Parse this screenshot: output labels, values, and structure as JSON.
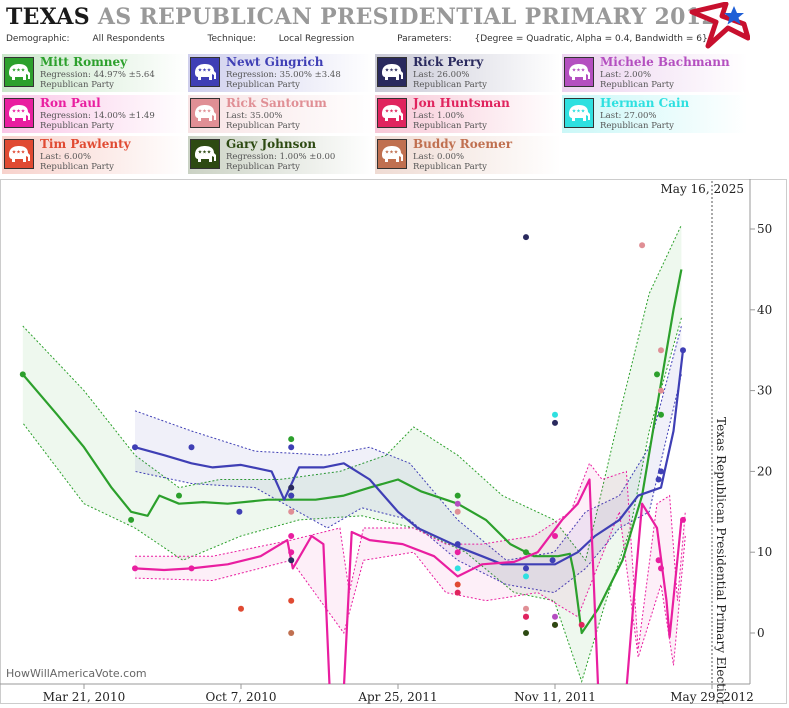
{
  "header": {
    "title_state": "TEXAS",
    "title_rest": "AS REPUBLICAN PRESIDENTIAL PRIMARY 2012",
    "demographic_label": "Demographic:",
    "demographic": "All Respondents",
    "technique_label": "Technique:",
    "technique": "Local Regression",
    "parameters_label": "Parameters:",
    "parameters": "{Degree = Quadratic, Alpha = 0.4, Bandwidth = 6}"
  },
  "logo_icon": "flag-star-logo-icon",
  "candidates": [
    {
      "name": "Mitt Romney",
      "stat": "Regression: 44.97% ±5.64",
      "party": "Republican Party",
      "color": "#2ca02c"
    },
    {
      "name": "Newt Gingrich",
      "stat": "Regression: 35.00% ±3.48",
      "party": "Republican Party",
      "color": "#3f3fb5"
    },
    {
      "name": "Rick Perry",
      "stat": "Last: 26.00%",
      "party": "Republican Party",
      "color": "#2a2a5e"
    },
    {
      "name": "Michele Bachmann",
      "stat": "Last: 2.00%",
      "party": "Republican Party",
      "color": "#b44fc0"
    },
    {
      "name": "Ron Paul",
      "stat": "Regression: 14.00% ±1.49",
      "party": "Republican Party",
      "color": "#e91ea0"
    },
    {
      "name": "Rick Santorum",
      "stat": "Last: 35.00%",
      "party": "Republican Party",
      "color": "#e08f95"
    },
    {
      "name": "Jon Huntsman",
      "stat": "Last: 1.00%",
      "party": "Republican Party",
      "color": "#e0245e"
    },
    {
      "name": "Herman Cain",
      "stat": "Last: 27.00%",
      "party": "Republican Party",
      "color": "#2ee0e0"
    },
    {
      "name": "Tim Pawlenty",
      "stat": "Last: 6.00%",
      "party": "Republican Party",
      "color": "#e04a32"
    },
    {
      "name": "Gary Johnson",
      "stat": "Regression: 1.00% ±0.00",
      "party": "Republican Party",
      "color": "#2d4a12"
    },
    {
      "name": "Buddy Roemer",
      "stat": "Last: 0.00%",
      "party": "Republican Party",
      "color": "#c07050"
    }
  ],
  "chart_data": {
    "type": "line",
    "x_type": "date",
    "xlim": [
      "2009-12-27",
      "2012-06-02"
    ],
    "ylim": [
      -7,
      55
    ],
    "yticks": [
      0,
      10,
      20,
      30,
      40,
      50
    ],
    "xticks": [
      {
        "date": "2010-03-21",
        "label": "Mar 21, 2010"
      },
      {
        "date": "2010-10-07",
        "label": "Oct 7, 2010"
      },
      {
        "date": "2011-04-25",
        "label": "Apr 25, 2011"
      },
      {
        "date": "2011-11-11",
        "label": "Nov 11, 2011"
      },
      {
        "date": "2012-05-29",
        "label": "May 29, 2012"
      }
    ],
    "current_date_label": "May 16, 2025",
    "election_label": "Texas Republican Presidential Primary Election",
    "election_date": "2012-05-29",
    "watermark": "HowWillAmericaVote.com",
    "bands": [
      {
        "color": "#2ca02c",
        "fill": "rgba(44,160,44,0.08)",
        "upper": [
          [
            "2010-01-02",
            38
          ],
          [
            "2010-03-21",
            30
          ],
          [
            "2010-05-25",
            22
          ],
          [
            "2010-07-20",
            18
          ],
          [
            "2010-09-10",
            19
          ],
          [
            "2010-11-25",
            19
          ],
          [
            "2011-02-10",
            20
          ],
          [
            "2011-04-10",
            22
          ],
          [
            "2011-05-15",
            25.5
          ],
          [
            "2011-07-10",
            22
          ],
          [
            "2011-09-05",
            17
          ],
          [
            "2011-11-10",
            14
          ],
          [
            "2011-12-20",
            9
          ],
          [
            "2012-02-01",
            27
          ],
          [
            "2012-03-10",
            42
          ],
          [
            "2012-04-20",
            50.5
          ]
        ],
        "lower": [
          [
            "2012-04-20",
            39
          ],
          [
            "2012-03-10",
            25
          ],
          [
            "2012-02-15",
            13
          ],
          [
            "2012-01-15",
            4
          ],
          [
            "2011-12-15",
            -6
          ],
          [
            "2011-11-10",
            4
          ],
          [
            "2011-09-20",
            5
          ],
          [
            "2011-07-20",
            10
          ],
          [
            "2011-05-15",
            13
          ],
          [
            "2011-03-10",
            14.5
          ],
          [
            "2010-12-20",
            14
          ],
          [
            "2010-10-07",
            12
          ],
          [
            "2010-07-25",
            9
          ],
          [
            "2010-05-25",
            13
          ],
          [
            "2010-03-21",
            16
          ],
          [
            "2010-01-02",
            26
          ]
        ]
      },
      {
        "color": "#3f3fb5",
        "fill": "rgba(63,63,181,0.08)",
        "upper": [
          [
            "2010-05-25",
            27.5
          ],
          [
            "2010-08-05",
            25
          ],
          [
            "2010-10-25",
            22.5
          ],
          [
            "2011-01-25",
            22
          ],
          [
            "2011-03-20",
            23
          ],
          [
            "2011-05-10",
            21
          ],
          [
            "2011-07-10",
            14
          ],
          [
            "2011-09-10",
            9
          ],
          [
            "2011-11-10",
            10
          ],
          [
            "2011-12-20",
            15
          ],
          [
            "2012-02-01",
            17
          ],
          [
            "2012-03-10",
            23
          ],
          [
            "2012-04-20",
            38
          ]
        ],
        "lower": [
          [
            "2012-04-20",
            32
          ],
          [
            "2012-03-10",
            15
          ],
          [
            "2012-02-01",
            13
          ],
          [
            "2011-12-20",
            8
          ],
          [
            "2011-11-10",
            5
          ],
          [
            "2011-09-10",
            6
          ],
          [
            "2011-07-10",
            9
          ],
          [
            "2011-05-10",
            14
          ],
          [
            "2011-03-10",
            15.5
          ],
          [
            "2011-01-25",
            13
          ],
          [
            "2010-10-25",
            18
          ],
          [
            "2010-08-05",
            18.5
          ],
          [
            "2010-05-25",
            20
          ]
        ]
      },
      {
        "color": "#e91ea0",
        "fill": "rgba(233,30,160,0.07)",
        "upper": [
          [
            "2010-05-25",
            9.5
          ],
          [
            "2010-09-01",
            9.5
          ],
          [
            "2010-12-10",
            11.5
          ],
          [
            "2011-02-10",
            13
          ],
          [
            "2011-02-22",
            5
          ],
          [
            "2011-03-12",
            13
          ],
          [
            "2011-05-15",
            13
          ],
          [
            "2011-06-25",
            11
          ],
          [
            "2011-08-10",
            11
          ],
          [
            "2011-10-15",
            12
          ],
          [
            "2011-12-01",
            15
          ],
          [
            "2011-12-25",
            21
          ],
          [
            "2012-01-10",
            19
          ],
          [
            "2012-02-10",
            20
          ],
          [
            "2012-02-25",
            -2
          ],
          [
            "2012-03-20",
            16
          ],
          [
            "2012-04-05",
            17
          ],
          [
            "2012-04-15",
            4
          ],
          [
            "2012-04-25",
            15
          ]
        ],
        "lower": [
          [
            "2012-04-25",
            12
          ],
          [
            "2012-04-10",
            -4
          ],
          [
            "2012-03-25",
            6
          ],
          [
            "2012-02-25",
            -3
          ],
          [
            "2012-02-01",
            15
          ],
          [
            "2011-12-10",
            2
          ],
          [
            "2011-10-20",
            5
          ],
          [
            "2011-08-15",
            4
          ],
          [
            "2011-06-25",
            5
          ],
          [
            "2011-05-15",
            10
          ],
          [
            "2011-03-12",
            9
          ],
          [
            "2011-02-15",
            0
          ],
          [
            "2010-12-10",
            9
          ],
          [
            "2010-09-01",
            6.5
          ],
          [
            "2010-05-25",
            6.8
          ]
        ]
      }
    ],
    "series": [
      {
        "name": "Mitt Romney",
        "color": "#2ca02c",
        "line": [
          [
            "2010-01-02",
            32
          ],
          [
            "2010-02-15",
            27
          ],
          [
            "2010-03-21",
            23
          ],
          [
            "2010-04-25",
            18
          ],
          [
            "2010-05-20",
            15
          ],
          [
            "2010-06-10",
            14.5
          ],
          [
            "2010-06-25",
            17
          ],
          [
            "2010-07-20",
            16
          ],
          [
            "2010-08-20",
            16.2
          ],
          [
            "2010-09-20",
            16
          ],
          [
            "2010-11-10",
            16.5
          ],
          [
            "2011-01-10",
            16.5
          ],
          [
            "2011-02-15",
            17
          ],
          [
            "2011-03-20",
            18
          ],
          [
            "2011-04-25",
            19
          ],
          [
            "2011-05-25",
            17.5
          ],
          [
            "2011-07-10",
            16
          ],
          [
            "2011-08-15",
            14
          ],
          [
            "2011-09-15",
            11
          ],
          [
            "2011-10-15",
            9.5
          ],
          [
            "2011-11-15",
            9.5
          ],
          [
            "2011-11-30",
            9.8
          ],
          [
            "2011-12-05",
            7.5
          ],
          [
            "2011-12-15",
            0
          ],
          [
            "2012-01-05",
            3
          ],
          [
            "2012-02-05",
            9
          ],
          [
            "2012-03-01",
            17
          ],
          [
            "2012-03-20",
            28
          ],
          [
            "2012-04-10",
            40
          ],
          [
            "2012-04-20",
            45
          ]
        ],
        "dash_upper": [],
        "points": [
          [
            "2010-01-02",
            32
          ],
          [
            "2010-05-20",
            14
          ],
          [
            "2010-07-20",
            17
          ],
          [
            "2010-12-10",
            24
          ],
          [
            "2010-12-10",
            17
          ],
          [
            "2011-07-10",
            17
          ],
          [
            "2011-10-05",
            10
          ],
          [
            "2012-03-20",
            32
          ],
          [
            "2012-03-25",
            27
          ]
        ]
      },
      {
        "name": "Newt Gingrich",
        "color": "#3f3fb5",
        "line": [
          [
            "2010-05-25",
            23
          ],
          [
            "2010-07-01",
            22
          ],
          [
            "2010-08-05",
            21
          ],
          [
            "2010-09-01",
            20.5
          ],
          [
            "2010-10-07",
            20.8
          ],
          [
            "2010-11-15",
            20
          ],
          [
            "2010-12-01",
            16.5
          ],
          [
            "2010-12-20",
            20.5
          ],
          [
            "2011-01-20",
            20.5
          ],
          [
            "2011-02-15",
            21
          ],
          [
            "2011-03-20",
            19
          ],
          [
            "2011-04-25",
            15
          ],
          [
            "2011-05-20",
            13
          ],
          [
            "2011-07-15",
            10.5
          ],
          [
            "2011-08-10",
            9.5
          ],
          [
            "2011-09-05",
            8.5
          ],
          [
            "2011-10-20",
            8.5
          ],
          [
            "2011-11-11",
            8.5
          ],
          [
            "2011-12-10",
            10
          ],
          [
            "2012-01-01",
            12
          ],
          [
            "2012-02-01",
            14
          ],
          [
            "2012-02-25",
            17
          ],
          [
            "2012-03-25",
            18
          ],
          [
            "2012-04-10",
            25
          ],
          [
            "2012-04-22",
            35
          ]
        ],
        "points": [
          [
            "2010-05-25",
            23
          ],
          [
            "2010-08-05",
            23
          ],
          [
            "2010-10-05",
            15
          ],
          [
            "2010-12-10",
            23
          ],
          [
            "2010-12-10",
            17
          ],
          [
            "2011-07-10",
            11
          ],
          [
            "2011-10-05",
            8
          ],
          [
            "2011-11-08",
            9
          ],
          [
            "2012-03-25",
            20
          ],
          [
            "2012-03-22",
            19
          ],
          [
            "2012-04-22",
            35
          ]
        ]
      },
      {
        "name": "Ron Paul",
        "color": "#e91ea0",
        "line": [
          [
            "2010-05-25",
            8
          ],
          [
            "2010-07-01",
            7.8
          ],
          [
            "2010-08-05",
            8
          ],
          [
            "2010-09-20",
            8.5
          ],
          [
            "2010-11-01",
            9.5
          ],
          [
            "2010-12-05",
            11.5
          ],
          [
            "2010-12-12",
            8
          ],
          [
            "2011-01-05",
            12
          ],
          [
            "2011-01-20",
            11
          ],
          [
            "2011-01-28",
            -7
          ],
          [
            "2011-02-15",
            -7
          ],
          [
            "2011-02-25",
            12.5
          ],
          [
            "2011-03-20",
            11.5
          ],
          [
            "2011-05-01",
            11
          ],
          [
            "2011-06-10",
            9.5
          ],
          [
            "2011-07-10",
            7
          ],
          [
            "2011-08-10",
            8.5
          ],
          [
            "2011-09-20",
            8.8
          ],
          [
            "2011-10-20",
            10
          ],
          [
            "2011-11-20",
            14
          ],
          [
            "2011-12-10",
            16
          ],
          [
            "2011-12-25",
            19
          ],
          [
            "2012-01-05",
            -7
          ],
          [
            "2012-02-10",
            -7
          ],
          [
            "2012-02-20",
            5
          ],
          [
            "2012-03-01",
            16
          ],
          [
            "2012-03-20",
            13
          ],
          [
            "2012-04-01",
            4
          ],
          [
            "2012-04-05",
            -0.5
          ],
          [
            "2012-04-20",
            14
          ]
        ],
        "points": [
          [
            "2010-05-25",
            8
          ],
          [
            "2010-08-05",
            8
          ],
          [
            "2010-12-10",
            10
          ],
          [
            "2010-12-10",
            12
          ],
          [
            "2011-07-10",
            10
          ],
          [
            "2011-10-05",
            2
          ],
          [
            "2011-11-11",
            12
          ],
          [
            "2012-03-22",
            9
          ],
          [
            "2012-03-25",
            8
          ],
          [
            "2012-04-22",
            14
          ]
        ]
      }
    ],
    "extra_points": [
      {
        "name": "Rick Perry",
        "color": "#2a2a5e",
        "points": [
          [
            "2011-10-05",
            49
          ],
          [
            "2011-11-11",
            26
          ],
          [
            "2010-12-10",
            9
          ],
          [
            "2010-12-10",
            18
          ]
        ]
      },
      {
        "name": "Michele Bachmann",
        "color": "#b44fc0",
        "points": [
          [
            "2011-07-10",
            16
          ],
          [
            "2011-11-11",
            2
          ]
        ]
      },
      {
        "name": "Rick Santorum",
        "color": "#e08f95",
        "points": [
          [
            "2010-12-10",
            15
          ],
          [
            "2011-10-05",
            3
          ],
          [
            "2012-03-01",
            48
          ],
          [
            "2012-03-25",
            35
          ],
          [
            "2012-03-25",
            30
          ],
          [
            "2011-07-10",
            15
          ]
        ]
      },
      {
        "name": "Jon Huntsman",
        "color": "#e0245e",
        "points": [
          [
            "2011-07-10",
            5
          ],
          [
            "2011-10-05",
            2
          ],
          [
            "2011-11-11",
            1
          ],
          [
            "2011-12-15",
            1
          ]
        ]
      },
      {
        "name": "Herman Cain",
        "color": "#2ee0e0",
        "points": [
          [
            "2011-11-11",
            27
          ],
          [
            "2011-07-10",
            8
          ],
          [
            "2011-10-05",
            7
          ]
        ]
      },
      {
        "name": "Tim Pawlenty",
        "color": "#e04a32",
        "points": [
          [
            "2010-10-07",
            3
          ],
          [
            "2010-12-10",
            4
          ],
          [
            "2011-07-10",
            6
          ]
        ]
      },
      {
        "name": "Gary Johnson",
        "color": "#2d4a12",
        "points": [
          [
            "2011-10-05",
            0
          ],
          [
            "2011-11-11",
            1
          ]
        ]
      },
      {
        "name": "Buddy Roemer",
        "color": "#c07050",
        "points": [
          [
            "2010-12-10",
            0
          ]
        ]
      }
    ]
  }
}
